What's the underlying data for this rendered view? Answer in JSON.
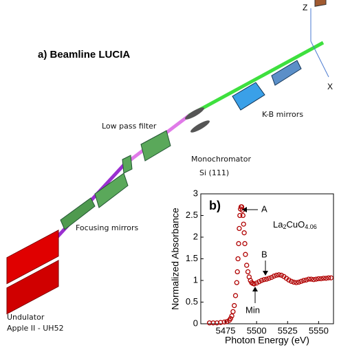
{
  "diagram": {
    "title": "a) Beamline LUCIA",
    "low_pass_filter": "Low pass filter",
    "monochromator": "Monochromator",
    "crystal": "Si (111)",
    "kb_mirrors": "K-B mirrors",
    "focusing_mirrors": "Focusing mirrors",
    "undulator": "Undulator",
    "undulator_model": "Apple II - UH52",
    "axis_z": "Z",
    "axis_x": "X"
  },
  "chart_data": {
    "type": "scatter",
    "panel_label": "b)",
    "xlabel": "Photon Energy (eV)",
    "ylabel": "Normalized Absorbance",
    "sample_formula": [
      "La",
      "2",
      "CuO",
      "4.06"
    ],
    "annotations": {
      "peak": "A",
      "shoulder": "B",
      "minimum": "Min"
    },
    "xlim": [
      5455,
      5562
    ],
    "ylim": [
      0,
      3
    ],
    "xticks": [
      5475,
      5500,
      5525,
      5550
    ],
    "yticks": [
      0,
      0.5,
      1,
      1.5,
      2,
      2.5,
      3
    ],
    "series": [
      {
        "color": "#b00000",
        "x": [
          5462,
          5465,
          5468,
          5471,
          5474,
          5476,
          5478,
          5479,
          5480,
          5481,
          5482,
          5483,
          5484,
          5484.5,
          5485,
          5485.5,
          5486,
          5486.5,
          5487,
          5487.5,
          5488,
          5488.5,
          5489,
          5489.5,
          5490,
          5490.5,
          5491,
          5492,
          5493,
          5494,
          5495,
          5496,
          5497,
          5498,
          5500,
          5502,
          5504,
          5506,
          5508,
          5510,
          5512,
          5514,
          5516,
          5518,
          5520,
          5522,
          5524,
          5526,
          5528,
          5530,
          5532,
          5534,
          5536,
          5538,
          5540,
          5542,
          5544,
          5546,
          5548,
          5550,
          5552,
          5554,
          5556,
          5558,
          5560
        ],
        "values": [
          0.02,
          0.02,
          0.02,
          0.03,
          0.04,
          0.05,
          0.08,
          0.12,
          0.18,
          0.28,
          0.42,
          0.65,
          0.95,
          1.2,
          1.5,
          1.85,
          2.2,
          2.5,
          2.65,
          2.7,
          2.7,
          2.62,
          2.5,
          2.3,
          2.1,
          1.85,
          1.6,
          1.35,
          1.2,
          1.08,
          1.0,
          0.95,
          0.93,
          0.92,
          0.94,
          0.97,
          1.0,
          1.02,
          1.03,
          1.05,
          1.07,
          1.1,
          1.12,
          1.13,
          1.12,
          1.09,
          1.05,
          1.01,
          0.98,
          0.96,
          0.95,
          0.96,
          0.98,
          1.0,
          1.01,
          1.03,
          1.03,
          1.02,
          1.03,
          1.04,
          1.04,
          1.05,
          1.05,
          1.06,
          1.06
        ]
      }
    ]
  }
}
